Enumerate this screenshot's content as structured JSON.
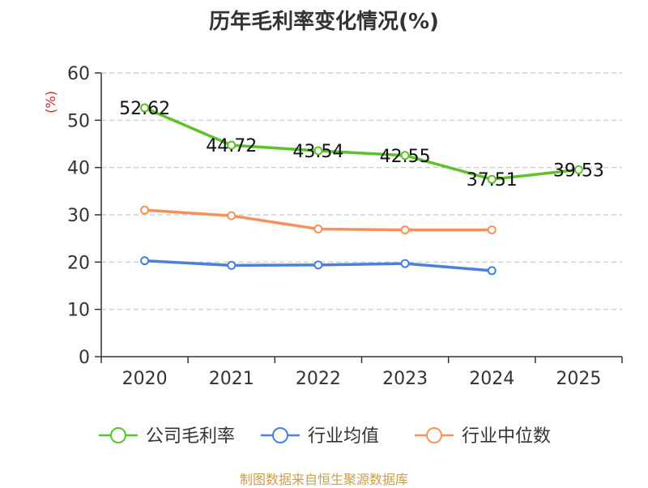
{
  "title": "历年毛利率变化情况(%)",
  "source": "制图数据来自恒生聚源数据库",
  "colors": {
    "company": "#5cc22a",
    "industry_avg": "#4a7fdc",
    "industry_median": "#f4925a",
    "unit": "#d42020",
    "grid": "#c8c8c8",
    "axis": "#333333"
  },
  "chart_data": {
    "type": "line",
    "title": "历年毛利率变化情况(%)",
    "ylabel": "(%)",
    "xlabel": "",
    "categories": [
      "2020",
      "2021",
      "2022",
      "2023",
      "2024",
      "2025"
    ],
    "ylim": [
      0,
      60
    ],
    "yticks": [
      0,
      10,
      20,
      30,
      40,
      50,
      60
    ],
    "grid": true,
    "legend_position": "bottom",
    "series": [
      {
        "name": "公司毛利率",
        "color": "#5cc22a",
        "labeled": true,
        "values": [
          52.62,
          44.72,
          43.54,
          42.55,
          37.51,
          39.53
        ]
      },
      {
        "name": "行业均值",
        "color": "#4a7fdc",
        "labeled": false,
        "values": [
          20.3,
          19.3,
          19.4,
          19.7,
          18.2,
          null
        ]
      },
      {
        "name": "行业中位数",
        "color": "#f4925a",
        "labeled": false,
        "values": [
          31.0,
          29.8,
          27.0,
          26.8,
          26.8,
          null
        ]
      }
    ]
  }
}
